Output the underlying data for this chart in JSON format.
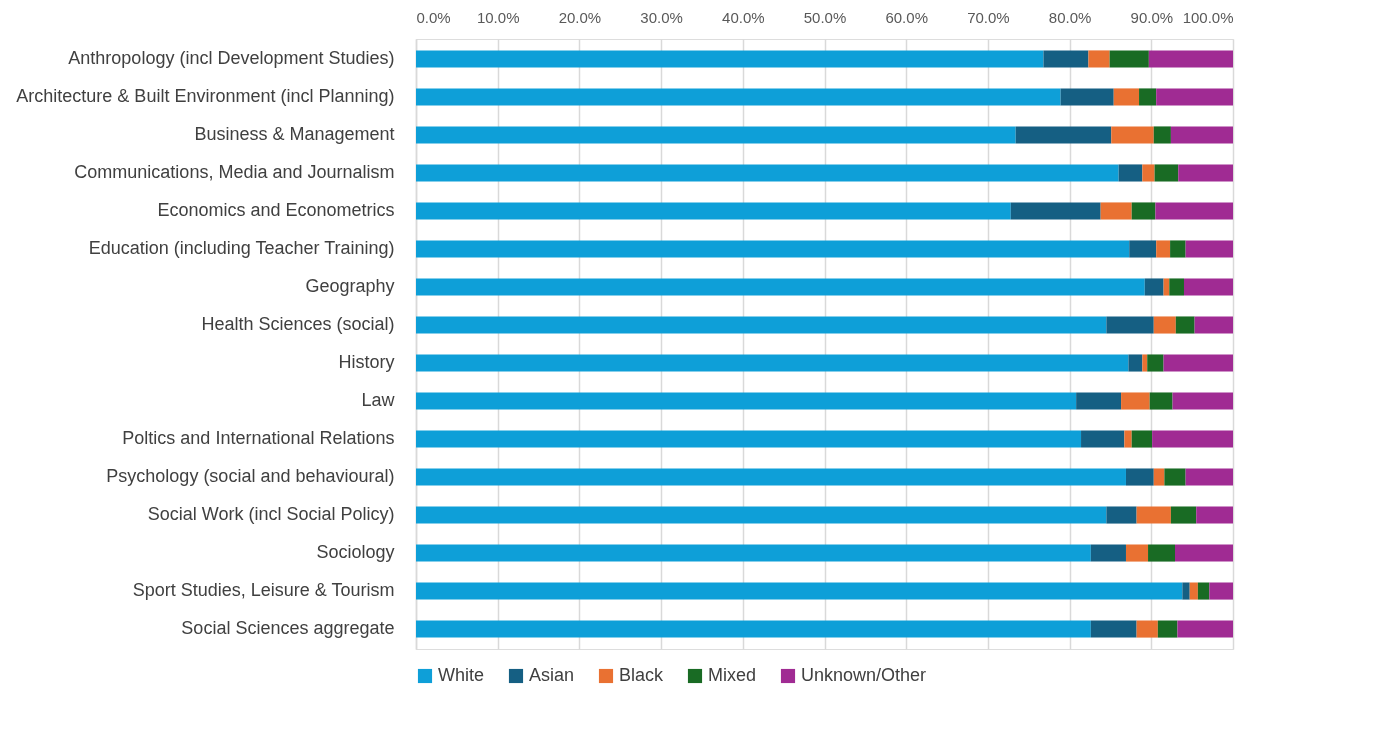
{
  "chart_data": {
    "type": "bar",
    "orientation": "horizontal",
    "stacked": true,
    "categories": [
      "Anthropology (incl Development Studies)",
      "Architecture & Built Environment (incl Planning)",
      "Business & Management",
      "Communications, Media and Journalism",
      "Economics and Econometrics",
      "Education (including Teacher Training)",
      "Geography",
      "Health Sciences (social)",
      "History",
      "Law",
      "Poltics and International Relations",
      "Psychology (social and behavioural)",
      "Social Work (incl Social Policy)",
      "Sociology",
      "Sport Studies, Leisure & Tourism",
      "Social Sciences aggregate"
    ],
    "series": [
      {
        "name": "White",
        "color": "#0e9fd8",
        "values": [
          76.8,
          78.9,
          73.4,
          86.0,
          72.8,
          87.3,
          89.2,
          84.5,
          87.2,
          80.8,
          81.4,
          86.9,
          84.5,
          82.6,
          93.8,
          82.6
        ]
      },
      {
        "name": "Asian",
        "color": "#155f83",
        "values": [
          5.5,
          6.5,
          11.7,
          2.9,
          11.0,
          3.3,
          2.3,
          5.8,
          1.7,
          5.5,
          5.3,
          3.4,
          3.7,
          4.3,
          0.9,
          5.6
        ]
      },
      {
        "name": "Black",
        "color": "#e97132",
        "values": [
          2.6,
          3.1,
          5.2,
          1.5,
          3.8,
          1.7,
          0.7,
          2.7,
          0.6,
          3.5,
          0.9,
          1.3,
          4.2,
          2.7,
          1.0,
          2.6
        ]
      },
      {
        "name": "Mixed",
        "color": "#196b24",
        "values": [
          4.8,
          2.1,
          2.1,
          2.9,
          2.9,
          1.9,
          1.8,
          2.3,
          2.0,
          2.8,
          2.5,
          2.6,
          3.1,
          3.3,
          1.4,
          2.4
        ]
      },
      {
        "name": "Unknown/Other",
        "color": "#a02b93",
        "values": [
          10.3,
          9.4,
          7.6,
          6.7,
          9.5,
          5.8,
          6.0,
          4.7,
          8.5,
          7.4,
          9.9,
          5.8,
          4.5,
          7.1,
          2.9,
          6.8
        ]
      }
    ],
    "xlim": [
      0,
      100
    ],
    "xticks": [
      {
        "value": 0,
        "label": "0.0%"
      },
      {
        "value": 10,
        "label": "10.0%"
      },
      {
        "value": 20,
        "label": "20.0%"
      },
      {
        "value": 30,
        "label": "30.0%"
      },
      {
        "value": 40,
        "label": "40.0%"
      },
      {
        "value": 50,
        "label": "50.0%"
      },
      {
        "value": 60,
        "label": "60.0%"
      },
      {
        "value": 70,
        "label": "70.0%"
      },
      {
        "value": 80,
        "label": "80.0%"
      },
      {
        "value": 90,
        "label": "90.0%"
      },
      {
        "value": 100,
        "label": "100.0%"
      }
    ],
    "grid": "x",
    "legend": "bottom"
  }
}
